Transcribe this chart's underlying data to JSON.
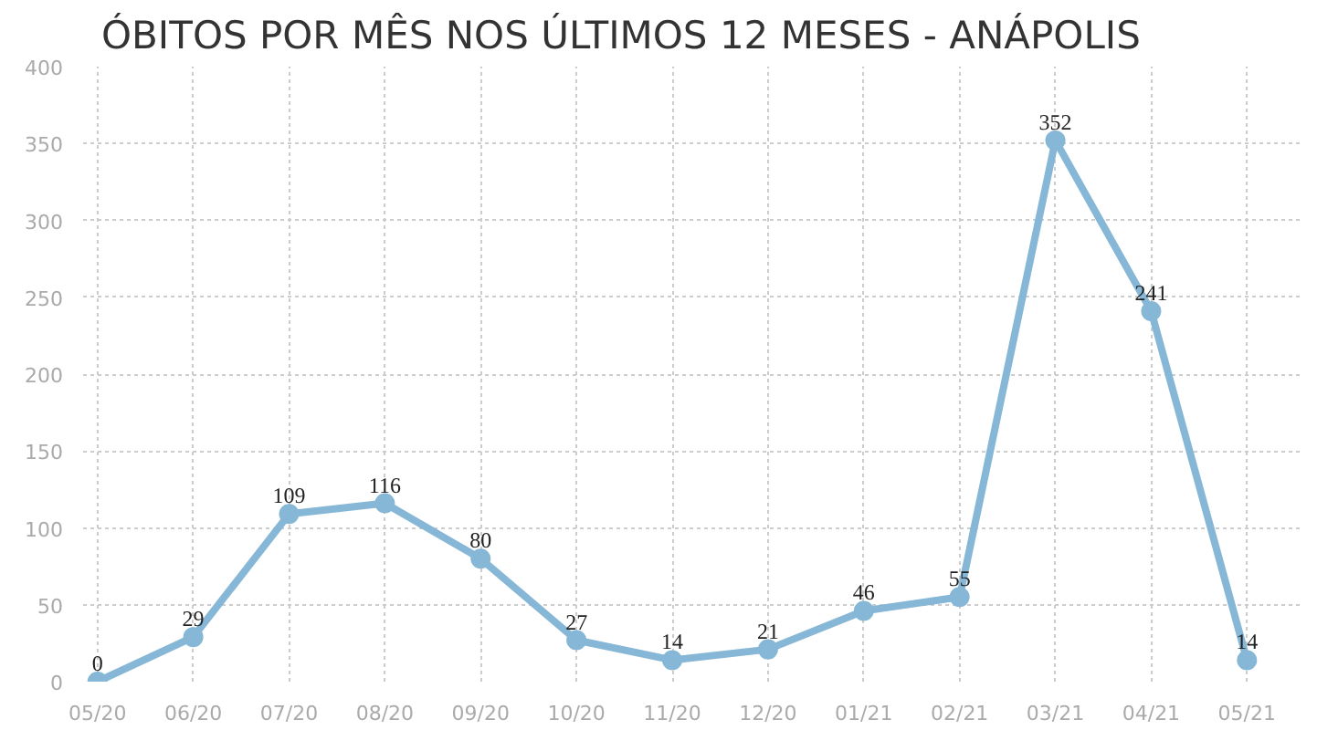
{
  "chart_data": {
    "type": "line",
    "title": "ÓBITOS POR MÊS NOS ÚLTIMOS 12 MESES - ANÁPOLIS",
    "categories": [
      "05/20",
      "06/20",
      "07/20",
      "08/20",
      "09/20",
      "10/20",
      "11/20",
      "12/20",
      "01/21",
      "02/21",
      "03/21",
      "04/21",
      "05/21"
    ],
    "series": [
      {
        "color": "#86b7d6",
        "values": [
          0,
          29,
          109,
          116,
          80,
          27,
          14,
          21,
          46,
          55,
          352,
          241,
          14
        ]
      }
    ],
    "ylim": [
      0,
      400
    ],
    "yticks": [
      0,
      50,
      100,
      150,
      200,
      250,
      300,
      350,
      400
    ],
    "grid": true,
    "marker": "circle",
    "line_style": "solid",
    "data_labels": true
  }
}
